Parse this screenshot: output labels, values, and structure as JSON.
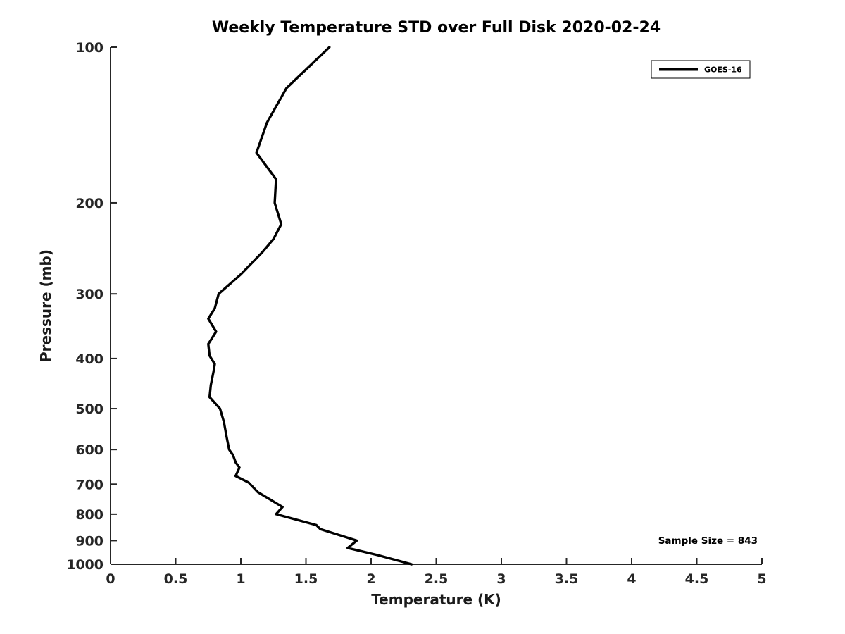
{
  "figure": {
    "background": "#ffffff",
    "line_color": "#000000",
    "axis_color": "#262626"
  },
  "annotation": {
    "text": "Sample Size = 843"
  },
  "legend": {
    "entries": [
      {
        "label": "GOES-16",
        "color": "#000000"
      }
    ],
    "position": "top-right"
  },
  "chart_data": {
    "type": "line",
    "title": "Weekly Temperature STD over Full Disk 2020-02-24",
    "xlabel": "Temperature (K)",
    "ylabel": "Pressure (mb)",
    "xlim": [
      0,
      5
    ],
    "ylim": [
      100,
      1000
    ],
    "y_scale": "log",
    "y_inverted": true,
    "grid": false,
    "x_ticks": [
      0,
      0.5,
      1,
      1.5,
      2,
      2.5,
      3,
      3.5,
      4,
      4.5,
      5
    ],
    "x_tick_labels": [
      "0",
      "0.5",
      "1",
      "1.5",
      "2",
      "2.5",
      "3",
      "3.5",
      "4",
      "4.5",
      "5"
    ],
    "y_ticks": [
      100,
      200,
      300,
      400,
      500,
      600,
      700,
      800,
      900,
      1000
    ],
    "y_tick_labels": [
      "100",
      "200",
      "300",
      "400",
      "500",
      "600",
      "700",
      "800",
      "900",
      "1000"
    ],
    "legend_position": "top-right",
    "series": [
      {
        "name": "GOES-16",
        "color": "#000000",
        "pressure_mb": [
          100,
          120,
          140,
          160,
          180,
          200,
          220,
          235,
          250,
          275,
          300,
          320,
          335,
          355,
          375,
          395,
          410,
          425,
          450,
          475,
          500,
          530,
          565,
          600,
          615,
          635,
          650,
          675,
          695,
          725,
          775,
          800,
          840,
          855,
          900,
          930,
          960,
          1000
        ],
        "temperature_std_k": [
          1.68,
          1.35,
          1.2,
          1.12,
          1.27,
          1.26,
          1.31,
          1.25,
          1.16,
          1.0,
          0.83,
          0.8,
          0.75,
          0.81,
          0.75,
          0.76,
          0.8,
          0.79,
          0.77,
          0.76,
          0.84,
          0.87,
          0.89,
          0.91,
          0.94,
          0.96,
          0.99,
          0.96,
          1.06,
          1.13,
          1.32,
          1.27,
          1.58,
          1.61,
          1.89,
          1.82,
          2.05,
          2.31
        ]
      }
    ]
  }
}
